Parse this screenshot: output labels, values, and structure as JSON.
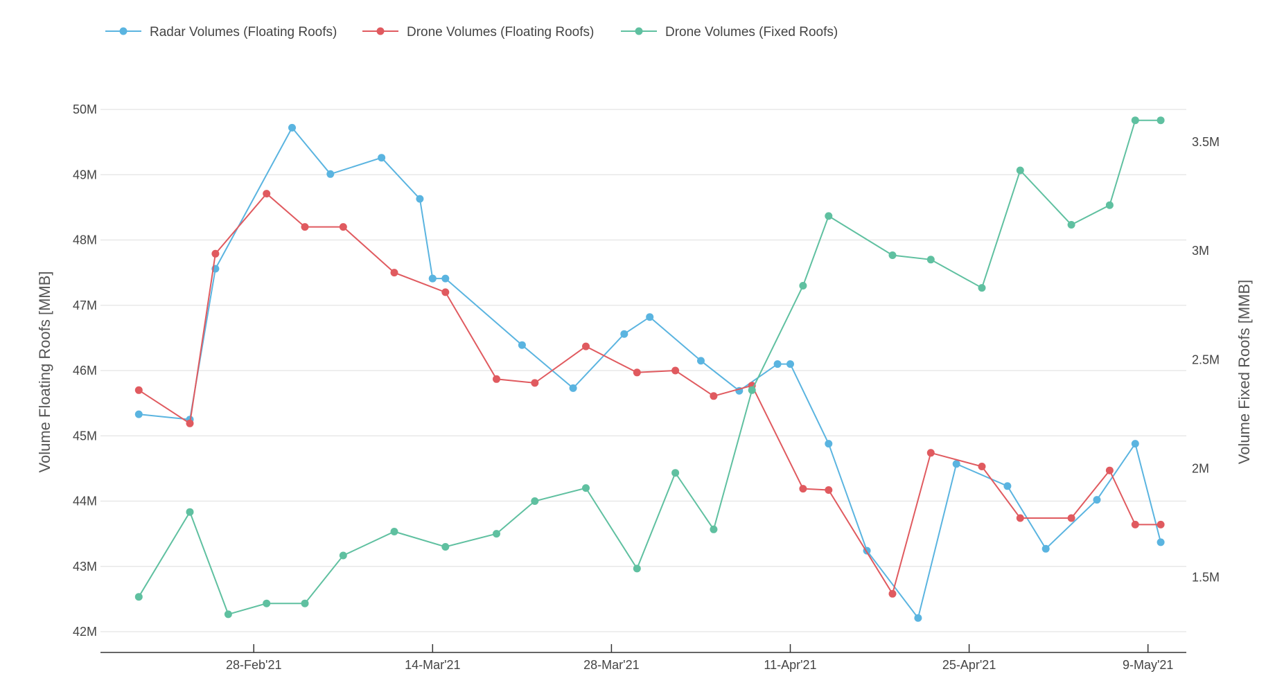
{
  "chart_data": {
    "type": "line",
    "title": "",
    "legend_position": "top-left",
    "grid": true,
    "xlabel": "",
    "ylabel_left": "Volume Floating Roofs [MMB]",
    "ylabel_right": "Volume Fixed Roofs [MMB]",
    "ylim_left": [
      42000000,
      50000000
    ],
    "ylim_right": [
      1250000,
      3650000
    ],
    "x_tick_labels": [
      "28-Feb'21",
      "14-Mar'21",
      "28-Mar'21",
      "11-Apr'21",
      "25-Apr'21",
      "9-May'21"
    ],
    "x_tick_dates": [
      "2021-02-28",
      "2021-03-14",
      "2021-03-28",
      "2021-04-11",
      "2021-04-25",
      "2021-05-09"
    ],
    "y_left_tick_labels": [
      "42M",
      "43M",
      "44M",
      "45M",
      "46M",
      "47M",
      "48M",
      "49M",
      "50M"
    ],
    "y_left_tick_values": [
      42000000,
      43000000,
      44000000,
      45000000,
      46000000,
      47000000,
      48000000,
      49000000,
      50000000
    ],
    "y_right_tick_labels": [
      "1.5M",
      "2M",
      "2.5M",
      "3M",
      "3.5M"
    ],
    "y_right_tick_values": [
      1500000,
      2000000,
      2500000,
      3000000,
      3500000
    ],
    "series": [
      {
        "name": "Radar Volumes (Floating Roofs)",
        "axis": "left",
        "color": "#5ab4e0",
        "x": [
          "2021-02-19",
          "2021-02-23",
          "2021-02-25",
          "2021-03-03",
          "2021-03-06",
          "2021-03-10",
          "2021-03-13",
          "2021-03-14",
          "2021-03-14",
          "2021-03-15",
          "2021-03-21",
          "2021-03-25",
          "2021-03-29",
          "2021-03-31",
          "2021-04-04",
          "2021-04-07",
          "2021-04-10",
          "2021-04-11",
          "2021-04-14",
          "2021-04-17",
          "2021-04-21",
          "2021-04-24",
          "2021-04-28",
          "2021-05-01",
          "2021-05-05",
          "2021-05-08",
          "2021-05-10"
        ],
        "y": [
          45330000,
          45250000,
          47560000,
          49720000,
          49010000,
          49260000,
          48630000,
          47410000,
          47410000,
          47410000,
          46390000,
          45730000,
          46560000,
          46820000,
          46150000,
          45690000,
          46100000,
          46100000,
          44880000,
          43240000,
          42210000,
          44570000,
          44230000,
          43270000,
          44020000,
          44880000,
          43370000
        ]
      },
      {
        "name": "Drone Volumes (Floating Roofs)",
        "axis": "left",
        "color": "#e05a5f",
        "x": [
          "2021-02-19",
          "2021-02-23",
          "2021-02-25",
          "2021-03-01",
          "2021-03-04",
          "2021-03-07",
          "2021-03-11",
          "2021-03-15",
          "2021-03-19",
          "2021-03-22",
          "2021-03-26",
          "2021-03-30",
          "2021-04-02",
          "2021-04-05",
          "2021-04-08",
          "2021-04-12",
          "2021-04-14",
          "2021-04-19",
          "2021-04-22",
          "2021-04-26",
          "2021-04-29",
          "2021-05-03",
          "2021-05-06",
          "2021-05-08",
          "2021-05-10"
        ],
        "y": [
          45700000,
          45190000,
          47790000,
          48710000,
          48200000,
          48200000,
          47500000,
          47200000,
          45870000,
          45810000,
          46370000,
          45970000,
          46000000,
          45610000,
          45770000,
          44190000,
          44170000,
          42580000,
          44740000,
          44530000,
          43740000,
          43740000,
          44470000,
          43640000,
          43640000
        ]
      },
      {
        "name": "Drone Volumes (Fixed Roofs)",
        "axis": "right",
        "color": "#5fc0a0",
        "x": [
          "2021-02-19",
          "2021-02-23",
          "2021-02-26",
          "2021-03-01",
          "2021-03-04",
          "2021-03-07",
          "2021-03-11",
          "2021-03-15",
          "2021-03-19",
          "2021-03-22",
          "2021-03-26",
          "2021-03-30",
          "2021-04-02",
          "2021-04-05",
          "2021-04-08",
          "2021-04-12",
          "2021-04-14",
          "2021-04-19",
          "2021-04-22",
          "2021-04-26",
          "2021-04-29",
          "2021-05-03",
          "2021-05-06",
          "2021-05-08",
          "2021-05-10"
        ],
        "y": [
          1410000,
          1800000,
          1330000,
          1380000,
          1380000,
          1600000,
          1710000,
          1640000,
          1700000,
          1850000,
          1910000,
          1540000,
          1980000,
          1720000,
          2360000,
          2840000,
          3160000,
          2980000,
          2960000,
          2830000,
          3370000,
          3120000,
          3210000,
          3600000,
          3600000
        ]
      }
    ]
  }
}
